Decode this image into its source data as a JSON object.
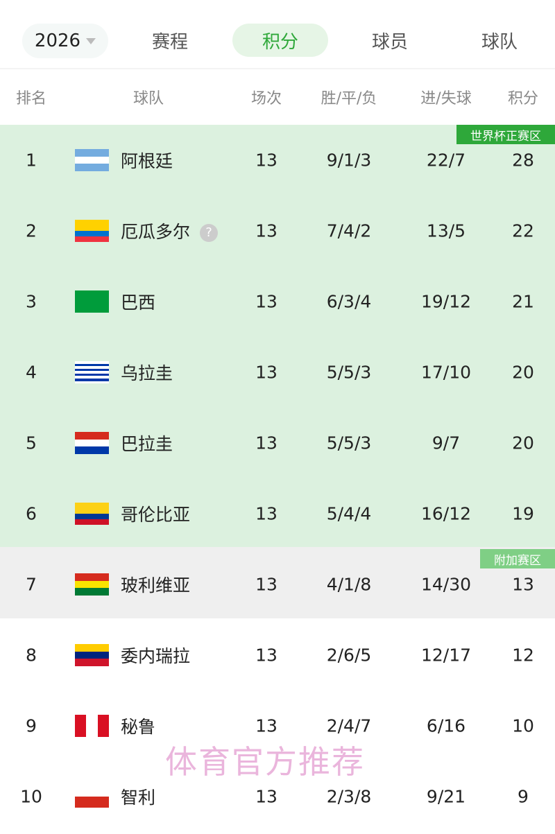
{
  "header": {
    "year": "2026",
    "tabs": [
      {
        "label": "赛程",
        "active": false
      },
      {
        "label": "积分",
        "active": true
      },
      {
        "label": "球员",
        "active": false
      },
      {
        "label": "球队",
        "active": false
      }
    ]
  },
  "columns": {
    "rank": "排名",
    "team": "球队",
    "played": "场次",
    "wdl": "胜/平/负",
    "goals": "进/失球",
    "points": "积分"
  },
  "zones": {
    "direct": {
      "label": "世界杯正赛区",
      "color": "#2ea83a",
      "bg": "#dcf1df"
    },
    "playoff": {
      "label": "附加赛区",
      "color": "#7fcf85",
      "bg": "#efefef"
    }
  },
  "rows": [
    {
      "rank": "1",
      "team": "阿根廷",
      "played": "13",
      "wdl": "9/1/3",
      "goals": "22/7",
      "points": "28",
      "flag": [
        "#74acdf",
        "#ffffff",
        "#74acdf"
      ]
    },
    {
      "rank": "2",
      "team": "厄瓜多尔",
      "played": "13",
      "wdl": "7/4/2",
      "goals": "13/5",
      "points": "22",
      "flag": [
        "#ffd100",
        "#ffd100",
        "#0072ce",
        "#ef3340"
      ],
      "help": "?"
    },
    {
      "rank": "3",
      "team": "巴西",
      "played": "13",
      "wdl": "6/3/4",
      "goals": "19/12",
      "points": "21",
      "flag": [
        "#009c3b"
      ]
    },
    {
      "rank": "4",
      "team": "乌拉圭",
      "played": "13",
      "wdl": "5/5/3",
      "goals": "17/10",
      "points": "20",
      "flag": [
        "#ffffff",
        "#0038a8",
        "#ffffff",
        "#0038a8",
        "#ffffff",
        "#0038a8",
        "#ffffff",
        "#0038a8",
        "#ffffff"
      ]
    },
    {
      "rank": "5",
      "team": "巴拉圭",
      "played": "13",
      "wdl": "5/5/3",
      "goals": "9/7",
      "points": "20",
      "flag": [
        "#d52b1e",
        "#ffffff",
        "#0038a8"
      ]
    },
    {
      "rank": "6",
      "team": "哥伦比亚",
      "played": "13",
      "wdl": "5/4/4",
      "goals": "16/12",
      "points": "19",
      "flag": [
        "#fcd116",
        "#fcd116",
        "#003893",
        "#ce1126"
      ]
    },
    {
      "rank": "7",
      "team": "玻利维亚",
      "played": "13",
      "wdl": "4/1/8",
      "goals": "14/30",
      "points": "13",
      "flag": [
        "#d52b1e",
        "#f9e300",
        "#007934"
      ]
    },
    {
      "rank": "8",
      "team": "委内瑞拉",
      "played": "13",
      "wdl": "2/6/5",
      "goals": "12/17",
      "points": "12",
      "flag": [
        "#ffcc00",
        "#00247d",
        "#cf142b"
      ]
    },
    {
      "rank": "9",
      "team": "秘鲁",
      "played": "13",
      "wdl": "2/4/7",
      "goals": "6/16",
      "points": "10",
      "flag": [
        "#d91023",
        "#ffffff",
        "#d91023"
      ],
      "vertical": true
    },
    {
      "rank": "10",
      "team": "智利",
      "played": "13",
      "wdl": "2/3/8",
      "goals": "9/21",
      "points": "9",
      "flag": [
        "#ffffff",
        "#d52b1e"
      ]
    }
  ],
  "watermark": "体育官方推荐"
}
